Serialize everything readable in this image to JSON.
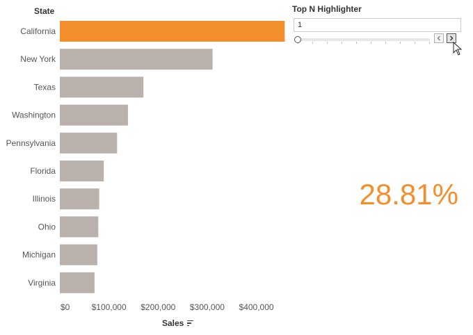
{
  "chart_data": {
    "type": "bar",
    "orientation": "horizontal",
    "row_header": "State",
    "categories": [
      "California",
      "New York",
      "Texas",
      "Washington",
      "Pennsylvania",
      "Florida",
      "Illinois",
      "Ohio",
      "Michigan",
      "Virginia"
    ],
    "values": [
      457688,
      310876,
      170188,
      138641,
      116512,
      89474,
      80166,
      78258,
      76270,
      70637
    ],
    "highlight_color": "#f28e2b",
    "base_color": "#bab0ac",
    "highlighted_category": "California",
    "xlabel": "Sales",
    "xticks": [
      "$0",
      "$100,000",
      "$200,000",
      "$300,000",
      "$400,000"
    ],
    "xtick_values": [
      0,
      100000,
      200000,
      300000,
      400000
    ],
    "xlim": [
      0,
      470000
    ],
    "grid": false
  },
  "parameter": {
    "title": "Top N Highlighter",
    "value": "1",
    "slider_fraction": 0
  },
  "kpi": {
    "value": "28.81%",
    "color": "#f28e2b"
  },
  "icons": {
    "sort": "sort-descending-icon",
    "prev": "chevron-left-icon",
    "next": "chevron-right-icon",
    "cursor": "mouse-pointer-icon"
  }
}
